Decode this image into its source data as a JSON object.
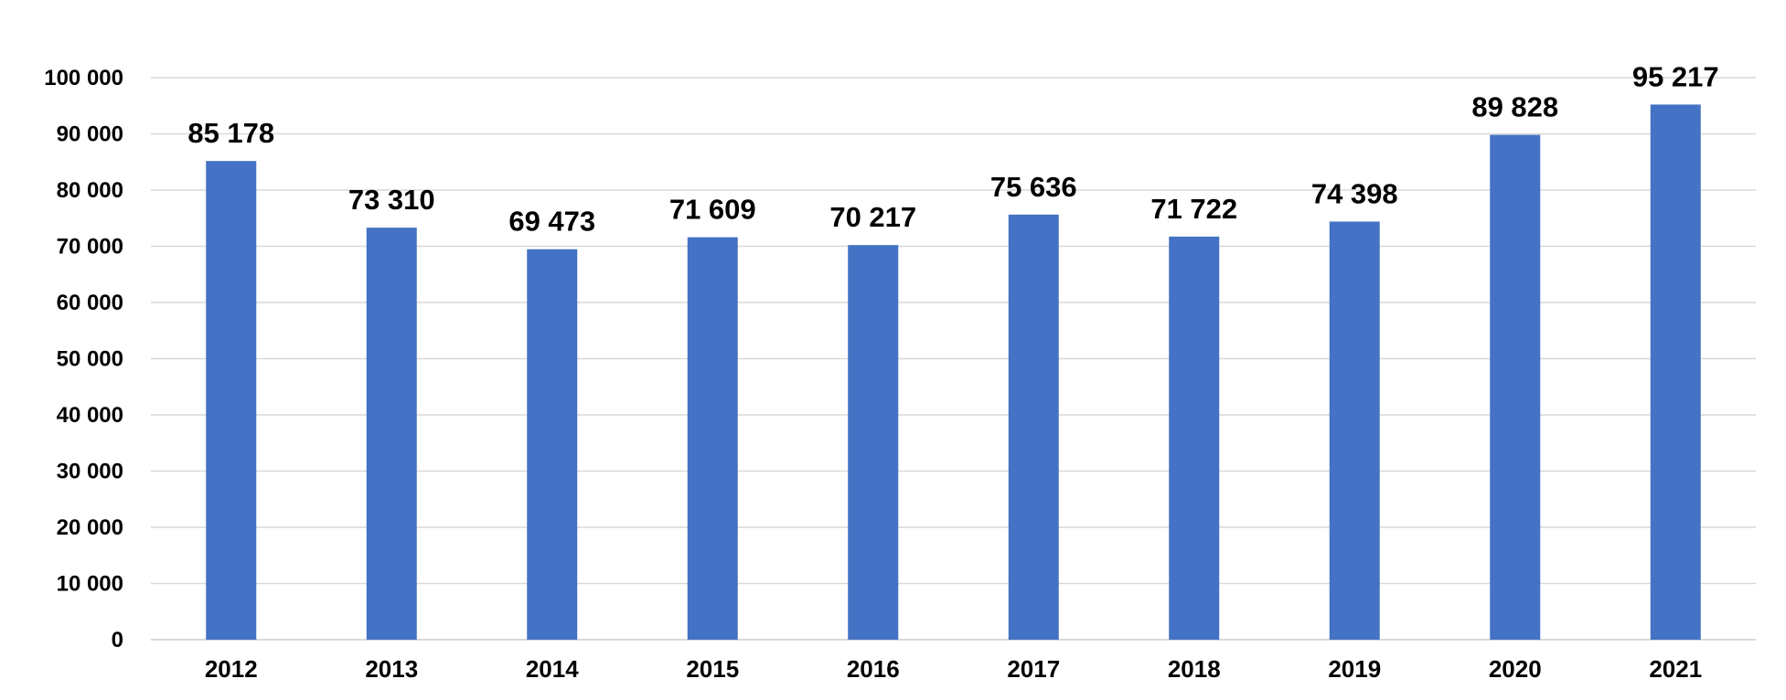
{
  "chart_data": {
    "type": "bar",
    "title": "",
    "xlabel": "",
    "ylabel": "",
    "categories": [
      "2012",
      "2013",
      "2014",
      "2015",
      "2016",
      "2017",
      "2018",
      "2019",
      "2020",
      "2021"
    ],
    "values": [
      85178,
      73310,
      69473,
      71609,
      70217,
      75636,
      71722,
      74398,
      89828,
      95217
    ],
    "data_labels": [
      "85 178",
      "73 310",
      "69 473",
      "71 609",
      "70 217",
      "75 636",
      "71 722",
      "74 398",
      "89 828",
      "95 217"
    ],
    "ylim": [
      0,
      100000
    ],
    "y_ticks": [
      0,
      10000,
      20000,
      30000,
      40000,
      50000,
      60000,
      70000,
      80000,
      90000,
      100000
    ],
    "y_tick_labels": [
      "0",
      "10 000",
      "20 000",
      "30 000",
      "40 000",
      "50 000",
      "60 000",
      "70 000",
      "80 000",
      "90 000",
      "100 000"
    ],
    "grid": true,
    "legend": "none",
    "colors": {
      "bar": "#4472c4",
      "grid": "#d9d9d9",
      "text": "#000000"
    }
  }
}
